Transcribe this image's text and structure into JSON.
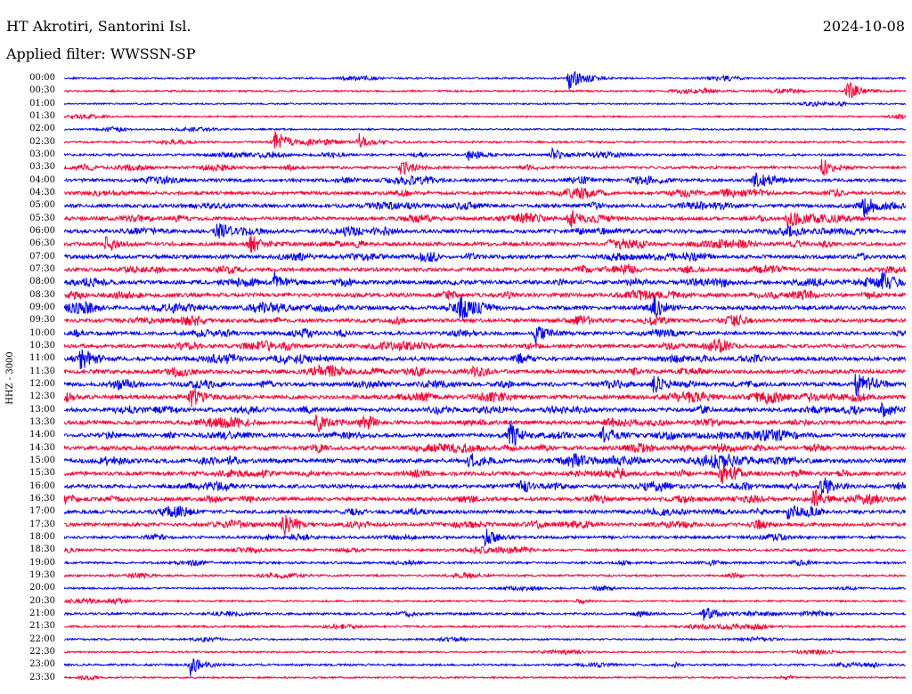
{
  "header": {
    "station": "HT Akrotiri, Santorini Isl.",
    "date": "2024-10-08",
    "filter": "Applied filter: WWSSN-SP",
    "channel": "HHZ - 3000"
  },
  "colors": {
    "trace_even": "#0000ff",
    "trace_odd": "#ff0033",
    "background": "#ffffff",
    "text": "#000000"
  },
  "time_labels": [
    "00:00",
    "00:30",
    "01:00",
    "01:30",
    "02:00",
    "02:30",
    "03:00",
    "03:30",
    "04:00",
    "04:30",
    "05:00",
    "05:30",
    "06:00",
    "06:30",
    "07:00",
    "07:30",
    "08:00",
    "08:30",
    "09:00",
    "09:30",
    "10:00",
    "10:30",
    "11:00",
    "11:30",
    "12:00",
    "12:30",
    "13:00",
    "13:30",
    "14:00",
    "14:30",
    "15:00",
    "15:30",
    "16:00",
    "16:30",
    "17:00",
    "17:30",
    "18:00",
    "18:30",
    "19:00",
    "19:30",
    "20:00",
    "20:30",
    "21:00",
    "21:30",
    "22:00",
    "22:30",
    "23:00",
    "23:30"
  ],
  "trace_activity": [
    0.15,
    0.15,
    0.1,
    0.1,
    0.12,
    0.2,
    0.25,
    0.3,
    0.45,
    0.45,
    0.5,
    0.5,
    0.55,
    0.55,
    0.55,
    0.55,
    0.6,
    0.6,
    0.6,
    0.55,
    0.5,
    0.55,
    0.6,
    0.6,
    0.6,
    0.6,
    0.6,
    0.6,
    0.6,
    0.6,
    0.65,
    0.6,
    0.55,
    0.55,
    0.5,
    0.5,
    0.35,
    0.3,
    0.25,
    0.2,
    0.15,
    0.15,
    0.25,
    0.2,
    0.15,
    0.12,
    0.2,
    0.12
  ],
  "events": [
    {
      "row": 0,
      "t": 0.6,
      "amp": 1.0
    },
    {
      "row": 1,
      "t": 0.93,
      "amp": 1.0
    },
    {
      "row": 5,
      "t": 0.25,
      "amp": 0.9
    },
    {
      "row": 5,
      "t": 0.35,
      "amp": 0.8
    },
    {
      "row": 6,
      "t": 0.48,
      "amp": 0.7
    },
    {
      "row": 6,
      "t": 0.58,
      "amp": 0.7
    },
    {
      "row": 7,
      "t": 0.4,
      "amp": 0.9
    },
    {
      "row": 7,
      "t": 0.9,
      "amp": 0.9
    },
    {
      "row": 8,
      "t": 0.82,
      "amp": 0.8
    },
    {
      "row": 10,
      "t": 0.95,
      "amp": 0.8
    },
    {
      "row": 11,
      "t": 0.6,
      "amp": 0.9
    },
    {
      "row": 11,
      "t": 0.86,
      "amp": 0.9
    },
    {
      "row": 12,
      "t": 0.18,
      "amp": 1.0
    },
    {
      "row": 13,
      "t": 0.05,
      "amp": 0.9
    },
    {
      "row": 13,
      "t": 0.22,
      "amp": 1.0
    },
    {
      "row": 16,
      "t": 0.25,
      "amp": 0.9
    },
    {
      "row": 16,
      "t": 0.97,
      "amp": 1.0
    },
    {
      "row": 18,
      "t": 0.47,
      "amp": 1.0
    },
    {
      "row": 18,
      "t": 0.7,
      "amp": 1.0
    },
    {
      "row": 20,
      "t": 0.56,
      "amp": 0.9
    },
    {
      "row": 22,
      "t": 0.02,
      "amp": 1.0
    },
    {
      "row": 24,
      "t": 0.7,
      "amp": 1.0
    },
    {
      "row": 24,
      "t": 0.94,
      "amp": 0.9
    },
    {
      "row": 25,
      "t": 0.15,
      "amp": 1.0
    },
    {
      "row": 26,
      "t": 0.97,
      "amp": 0.9
    },
    {
      "row": 27,
      "t": 0.3,
      "amp": 1.0
    },
    {
      "row": 28,
      "t": 0.53,
      "amp": 1.0
    },
    {
      "row": 28,
      "t": 0.64,
      "amp": 1.0
    },
    {
      "row": 30,
      "t": 0.48,
      "amp": 1.0
    },
    {
      "row": 31,
      "t": 0.78,
      "amp": 1.0
    },
    {
      "row": 32,
      "t": 0.9,
      "amp": 1.0
    },
    {
      "row": 33,
      "t": 0.89,
      "amp": 1.0
    },
    {
      "row": 34,
      "t": 0.86,
      "amp": 0.9
    },
    {
      "row": 35,
      "t": 0.26,
      "amp": 1.0
    },
    {
      "row": 36,
      "t": 0.5,
      "amp": 0.9
    },
    {
      "row": 42,
      "t": 0.76,
      "amp": 0.8
    },
    {
      "row": 46,
      "t": 0.15,
      "amp": 1.0
    }
  ]
}
